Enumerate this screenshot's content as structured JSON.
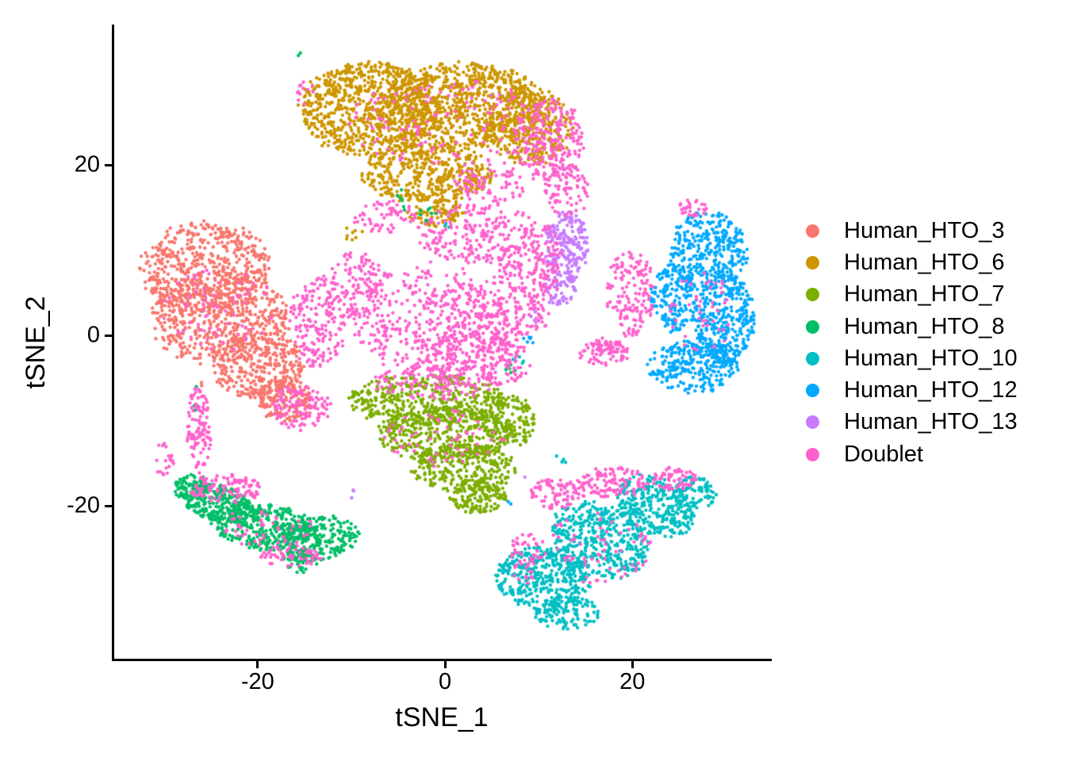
{
  "style": {
    "background": "#FFFFFF",
    "axis_color": "#000000",
    "text_color": "#000000"
  },
  "chart_data": {
    "type": "scatter",
    "title": "",
    "xlabel": "tSNE_1",
    "ylabel": "tSNE_2",
    "x_ticks": [
      -20,
      0,
      20
    ],
    "y_ticks": [
      -20,
      0,
      20
    ],
    "xlim": [
      -35.4,
      34.8
    ],
    "ylim": [
      -38.1,
      36.4
    ],
    "grid": false,
    "legend_position": "right",
    "point_radius_px": 2.2,
    "seed": 7,
    "series": [
      {
        "name": "Human_HTO_3",
        "color": "#F8766D",
        "count": 1602,
        "center": [
          -24.5,
          2.5
        ],
        "blobs": [
          [
            -25.5,
            8,
            7,
            5.5,
            550
          ],
          [
            -24,
            2,
            7.5,
            5.5,
            550
          ],
          [
            -20,
            -3.5,
            5,
            4,
            330
          ],
          [
            -17,
            -7.5,
            3,
            2.5,
            170
          ],
          [
            -26,
            -5.6,
            0.35,
            0.35,
            2
          ]
        ]
      },
      {
        "name": "Human_HTO_6",
        "color": "#CD9600",
        "count": 2488,
        "center": [
          -1,
          24
        ],
        "blobs": [
          [
            -8,
            26.5,
            7.5,
            5.5,
            800
          ],
          [
            2,
            27,
            8.5,
            5,
            800
          ],
          [
            -2,
            19,
            7,
            3.5,
            450
          ],
          [
            9,
            24.5,
            4.5,
            4.5,
            350
          ],
          [
            -1,
            14.5,
            3,
            1.8,
            80
          ],
          [
            -9.5,
            12,
            1.5,
            1,
            8
          ]
        ]
      },
      {
        "name": "Human_HTO_7",
        "color": "#7CAE00",
        "count": 1380,
        "center": [
          0,
          -12
        ],
        "blobs": [
          [
            -2,
            -7.5,
            8.5,
            3,
            420
          ],
          [
            0,
            -11.5,
            7.5,
            3.2,
            420
          ],
          [
            2,
            -15.5,
            5.5,
            2.8,
            280
          ],
          [
            3.5,
            -19,
            3,
            2,
            130
          ],
          [
            7,
            -10,
            2.8,
            3,
            130
          ]
        ]
      },
      {
        "name": "Human_HTO_8",
        "color": "#00BE67",
        "count": 1007,
        "center": [
          -19.5,
          -22
        ],
        "blobs": [
          [
            -24.5,
            -19.5,
            4.2,
            2.2,
            250,
            -20
          ],
          [
            -19.5,
            -22.3,
            5.5,
            2.8,
            350,
            -10
          ],
          [
            -13.5,
            -23.8,
            4.2,
            2.6,
            250,
            10
          ],
          [
            -27,
            -17.8,
            2,
            1.4,
            80
          ],
          [
            -15.5,
            -26.5,
            2,
            1.3,
            50
          ],
          [
            -15.5,
            33,
            0.3,
            0.3,
            2
          ],
          [
            -3,
            14.5,
            2.5,
            1.5,
            10
          ],
          [
            -26.5,
            -7.5,
            0.5,
            1.5,
            5
          ],
          [
            -5,
            16.5,
            1,
            1,
            4
          ],
          [
            7,
            -3.8,
            0.9,
            0.7,
            6
          ]
        ]
      },
      {
        "name": "Human_HTO_10",
        "color": "#00BFC4",
        "count": 1352,
        "center": [
          16,
          -25
        ],
        "blobs": [
          [
            10.5,
            -28.5,
            5,
            3.8,
            400
          ],
          [
            16.5,
            -24,
            5.5,
            4,
            420,
            -30
          ],
          [
            22.5,
            -20,
            4.5,
            3.2,
            300,
            -30
          ],
          [
            13,
            -32.5,
            3.5,
            2,
            120
          ],
          [
            26.5,
            -18.5,
            2.5,
            2,
            100
          ],
          [
            0.5,
            13.5,
            0.8,
            0.8,
            3
          ],
          [
            12,
            -14.8,
            1.2,
            0.8,
            4
          ],
          [
            7.8,
            -2.5,
            0.8,
            0.8,
            5
          ]
        ]
      },
      {
        "name": "Human_HTO_12",
        "color": "#00A9FF",
        "count": 1108,
        "center": [
          27.5,
          3
        ],
        "blobs": [
          [
            28,
            10,
            4.2,
            4.5,
            330
          ],
          [
            29.8,
            2,
            3.2,
            5.5,
            330
          ],
          [
            26.5,
            -3.5,
            4.8,
            3.2,
            270
          ],
          [
            24.5,
            4.5,
            2.6,
            4,
            170
          ],
          [
            7,
            -19.5,
            0.4,
            0.4,
            2
          ],
          [
            9,
            -0.5,
            0.6,
            1,
            6
          ]
        ]
      },
      {
        "name": "Human_HTO_13",
        "color": "#C77CFF",
        "count": 268,
        "center": [
          13,
          9.5
        ],
        "blobs": [
          [
            13,
            10.5,
            2.3,
            4.2,
            200
          ],
          [
            12.2,
            5.5,
            1.8,
            2,
            60
          ],
          [
            -10,
            -18,
            0.6,
            1.1,
            3
          ],
          [
            9.4,
            2,
            0.5,
            1,
            4
          ],
          [
            8.6,
            -16.5,
            0.3,
            0.3,
            1
          ]
        ]
      },
      {
        "name": "Doublet",
        "color": "#FF61CC",
        "count": 3517,
        "center": [
          0,
          2
        ],
        "blobs": [
          [
            11,
            23,
            3.8,
            4.8,
            230
          ],
          [
            13,
            17,
            2.5,
            3,
            80
          ],
          [
            26.5,
            15,
            1.8,
            1,
            30
          ],
          [
            3.5,
            12,
            6.5,
            3.5,
            230
          ],
          [
            -2,
            2,
            8.5,
            6.5,
            380
          ],
          [
            2,
            0,
            5,
            6,
            220
          ],
          [
            6,
            -3,
            3,
            3,
            120
          ],
          [
            -9.5,
            6,
            3,
            4,
            120
          ],
          [
            8.5,
            5.5,
            3.5,
            5.5,
            200
          ],
          [
            19.8,
            5,
            2.6,
            5,
            150
          ],
          [
            17,
            -2,
            2.6,
            1.6,
            90
          ],
          [
            -13.5,
            1.5,
            3,
            5.5,
            180
          ],
          [
            -15.5,
            -8.5,
            3.2,
            2.6,
            110
          ],
          [
            -26.3,
            -11,
            1.3,
            5,
            110
          ],
          [
            -23.5,
            -18,
            3.8,
            1.8,
            110
          ],
          [
            -30,
            -14.5,
            1,
            2,
            20
          ],
          [
            -16.5,
            -26,
            3.5,
            1.4,
            60
          ],
          [
            12,
            -18.5,
            3,
            1.8,
            90
          ],
          [
            18,
            -17.2,
            3.8,
            1.8,
            110
          ],
          [
            24.5,
            -16.8,
            2.4,
            1.4,
            70
          ],
          [
            8.5,
            -26,
            1.6,
            3,
            50
          ],
          [
            -15,
            28.5,
            1.5,
            1.5,
            12
          ],
          [
            0,
            25,
            11,
            5,
            130
          ],
          [
            5,
            18,
            4,
            2.5,
            80
          ],
          [
            -6.5,
            14,
            3.5,
            2,
            60
          ],
          [
            -24,
            3,
            6,
            5,
            70
          ],
          [
            16,
            -25,
            6,
            4,
            70
          ],
          [
            -19,
            -22.5,
            5,
            2.2,
            50
          ],
          [
            27.5,
            3,
            3.5,
            5,
            45
          ],
          [
            0,
            -12,
            6.5,
            3.5,
            60
          ],
          [
            -1,
            -5.5,
            7,
            2,
            120
          ],
          [
            11,
            9,
            1.5,
            4,
            60
          ]
        ]
      }
    ]
  }
}
